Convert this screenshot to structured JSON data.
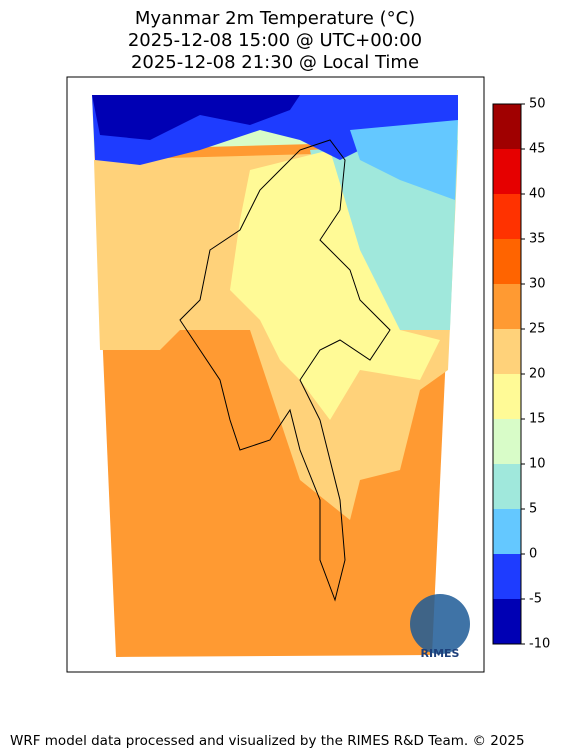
{
  "title": [
    "Myanmar 2m Temperature (°C)",
    "2025-12-08 15:00 @ UTC+00:00",
    "2025-12-08 21:30 @ Local Time"
  ],
  "colorbar": {
    "ticks": [
      -10,
      -5,
      0,
      5,
      10,
      15,
      20,
      25,
      30,
      35,
      40,
      45,
      50
    ],
    "colors": [
      "#0000b4",
      "#1e3cff",
      "#64c8ff",
      "#a0e8dc",
      "#d8fcc8",
      "#fffa96",
      "#ffd27a",
      "#ff9a32",
      "#ff6400",
      "#ff3200",
      "#e60000",
      "#a00000"
    ]
  },
  "logo_text": "RIMES",
  "footer": "WRF model data processed and visualized by the RIMES R&D Team. © 2025"
}
